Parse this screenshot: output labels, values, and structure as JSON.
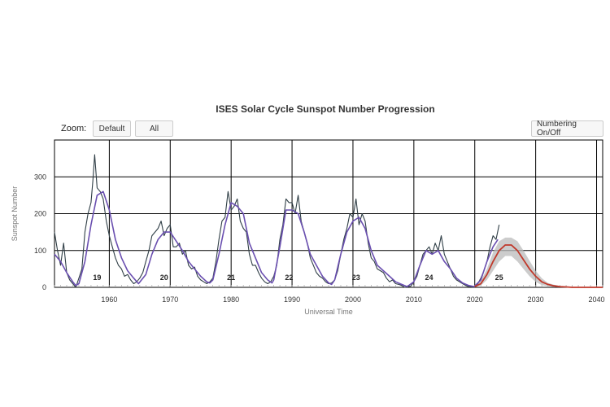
{
  "chart_data": {
    "type": "line",
    "title": "ISES Solar Cycle Sunspot Number Progression",
    "xlabel": "Universal Time",
    "ylabel": "Sunspot Number",
    "xlim": [
      1951.0,
      2041.0
    ],
    "ylim": [
      0,
      400
    ],
    "x_ticks": [
      "1960",
      "1970",
      "1980",
      "1990",
      "2000",
      "2010",
      "2020",
      "2030",
      "2040"
    ],
    "y_ticks": [
      "0",
      "100",
      "200",
      "300"
    ],
    "grid": true,
    "cycle_labels": [
      {
        "label": "19",
        "x": 1958.0
      },
      {
        "label": "20",
        "x": 1969.0
      },
      {
        "label": "21",
        "x": 1980.0
      },
      {
        "label": "22",
        "x": 1989.5
      },
      {
        "label": "23",
        "x": 2000.5
      },
      {
        "label": "24",
        "x": 2012.5
      },
      {
        "label": "25",
        "x": 2024.0
      }
    ],
    "series": [
      {
        "color": "#2f3e46",
        "x": [
          1951.0,
          1951.5,
          1952.0,
          1952.5,
          1953.0,
          1953.5,
          1954.0,
          1954.5,
          1955.0,
          1955.5,
          1956.0,
          1956.5,
          1957.0,
          1957.3,
          1957.6,
          1958.0,
          1958.5,
          1959.0,
          1959.5,
          1960.0,
          1960.5,
          1961.0,
          1961.5,
          1962.0,
          1962.5,
          1963.0,
          1963.5,
          1964.0,
          1964.5,
          1965.0,
          1965.5,
          1966.0,
          1966.5,
          1967.0,
          1967.5,
          1968.0,
          1968.5,
          1969.0,
          1969.5,
          1970.0,
          1970.5,
          1971.0,
          1971.5,
          1972.0,
          1972.5,
          1973.0,
          1973.5,
          1974.0,
          1974.5,
          1975.0,
          1975.5,
          1976.0,
          1976.5,
          1977.0,
          1977.5,
          1978.0,
          1978.5,
          1979.0,
          1979.5,
          1980.0,
          1980.5,
          1981.0,
          1981.5,
          1982.0,
          1982.5,
          1983.0,
          1983.5,
          1984.0,
          1984.5,
          1985.0,
          1985.5,
          1986.0,
          1986.5,
          1987.0,
          1987.5,
          1988.0,
          1988.5,
          1989.0,
          1989.5,
          1990.0,
          1990.5,
          1991.0,
          1991.5,
          1992.0,
          1992.5,
          1993.0,
          1993.5,
          1994.0,
          1994.5,
          1995.0,
          1995.5,
          1996.0,
          1996.5,
          1997.0,
          1997.5,
          1998.0,
          1998.5,
          1999.0,
          1999.5,
          2000.0,
          2000.5,
          2001.0,
          2001.5,
          2002.0,
          2002.5,
          2003.0,
          2003.5,
          2004.0,
          2004.5,
          2005.0,
          2005.5,
          2006.0,
          2006.5,
          2007.0,
          2007.5,
          2008.0,
          2008.5,
          2009.0,
          2009.5,
          2010.0,
          2010.5,
          2011.0,
          2011.5,
          2012.0,
          2012.5,
          2013.0,
          2013.5,
          2014.0,
          2014.5,
          2015.0,
          2015.5,
          2016.0,
          2016.5,
          2017.0,
          2017.5,
          2018.0,
          2018.5,
          2019.0,
          2019.5,
          2020.0,
          2020.5,
          2021.0,
          2021.5,
          2022.0,
          2022.5,
          2023.0,
          2023.5,
          2024.0
        ],
        "y": [
          150,
          100,
          60,
          120,
          40,
          20,
          10,
          0,
          25,
          50,
          150,
          200,
          230,
          290,
          360,
          270,
          260,
          240,
          180,
          140,
          110,
          80,
          60,
          50,
          30,
          35,
          20,
          10,
          15,
          25,
          40,
          70,
          100,
          140,
          150,
          160,
          180,
          140,
          160,
          170,
          110,
          110,
          120,
          90,
          100,
          60,
          50,
          55,
          30,
          20,
          15,
          10,
          15,
          25,
          70,
          130,
          180,
          190,
          260,
          210,
          220,
          240,
          180,
          160,
          150,
          90,
          60,
          60,
          40,
          25,
          15,
          10,
          15,
          30,
          60,
          130,
          170,
          240,
          230,
          230,
          200,
          250,
          180,
          150,
          120,
          80,
          60,
          40,
          30,
          25,
          15,
          10,
          12,
          20,
          45,
          90,
          130,
          160,
          200,
          190,
          240,
          170,
          200,
          180,
          120,
          80,
          70,
          50,
          45,
          40,
          25,
          15,
          20,
          10,
          8,
          5,
          0,
          2,
          3,
          15,
          30,
          60,
          90,
          100,
          110,
          90,
          120,
          100,
          140,
          90,
          70,
          50,
          30,
          20,
          15,
          10,
          5,
          2,
          1,
          2,
          10,
          25,
          45,
          70,
          110,
          140,
          130,
          170
        ]
      },
      {
        "color": "#6a4fb0",
        "x": [
          1951.0,
          1952.0,
          1953.0,
          1954.0,
          1954.5,
          1955.0,
          1956.0,
          1957.0,
          1958.0,
          1959.0,
          1960.0,
          1961.0,
          1962.0,
          1963.0,
          1964.0,
          1964.8,
          1966.0,
          1967.0,
          1968.0,
          1969.0,
          1970.0,
          1971.0,
          1972.0,
          1973.0,
          1974.0,
          1975.0,
          1976.0,
          1976.5,
          1977.0,
          1978.0,
          1979.0,
          1980.0,
          1981.0,
          1982.0,
          1983.0,
          1984.0,
          1985.0,
          1986.0,
          1986.7,
          1987.0,
          1988.0,
          1989.0,
          1990.0,
          1991.0,
          1992.0,
          1993.0,
          1994.0,
          1995.0,
          1996.0,
          1996.5,
          1997.0,
          1998.0,
          1999.0,
          2000.0,
          2001.0,
          2002.0,
          2003.0,
          2004.0,
          2005.0,
          2006.0,
          2007.0,
          2008.0,
          2008.9,
          2010.0,
          2011.0,
          2012.0,
          2013.0,
          2014.0,
          2015.0,
          2016.0,
          2017.0,
          2018.0,
          2019.0,
          2019.9,
          2021.0,
          2022.0,
          2023.0,
          2023.8
        ],
        "y": [
          90,
          70,
          40,
          15,
          5,
          10,
          70,
          170,
          250,
          260,
          210,
          130,
          80,
          45,
          25,
          10,
          35,
          90,
          130,
          150,
          150,
          125,
          100,
          70,
          50,
          30,
          15,
          12,
          20,
          90,
          170,
          230,
          220,
          200,
          120,
          80,
          40,
          20,
          12,
          20,
          110,
          210,
          210,
          200,
          150,
          90,
          60,
          30,
          12,
          8,
          20,
          90,
          150,
          180,
          190,
          160,
          100,
          60,
          45,
          30,
          15,
          8,
          2,
          15,
          60,
          100,
          90,
          100,
          70,
          50,
          25,
          12,
          5,
          2,
          20,
          70,
          110,
          130
        ]
      }
    ],
    "prediction": {
      "color": "#c0392b",
      "band_color": "#bbbbbb",
      "x": [
        2020.0,
        2021.0,
        2022.0,
        2023.0,
        2024.0,
        2025.0,
        2026.0,
        2027.0,
        2028.0,
        2029.0,
        2030.0,
        2031.0,
        2032.0,
        2033.0,
        2034.0,
        2035.0,
        2036.0,
        2038.0,
        2040.0,
        2041.0
      ],
      "y": [
        2,
        10,
        35,
        70,
        100,
        115,
        115,
        100,
        75,
        50,
        30,
        15,
        8,
        4,
        2,
        1,
        0,
        0,
        0,
        0
      ],
      "lower": [
        1,
        5,
        20,
        45,
        70,
        85,
        85,
        70,
        50,
        30,
        15,
        6,
        3,
        1,
        0,
        0,
        0,
        0,
        0,
        0
      ],
      "upper": [
        4,
        18,
        50,
        95,
        125,
        135,
        135,
        125,
        100,
        72,
        45,
        25,
        12,
        7,
        4,
        2,
        1,
        0,
        0,
        0
      ]
    }
  },
  "controls": {
    "zoom_label": "Zoom:",
    "default_label": "Default",
    "all_label": "All",
    "numbering_label": "Numbering On/Off"
  }
}
